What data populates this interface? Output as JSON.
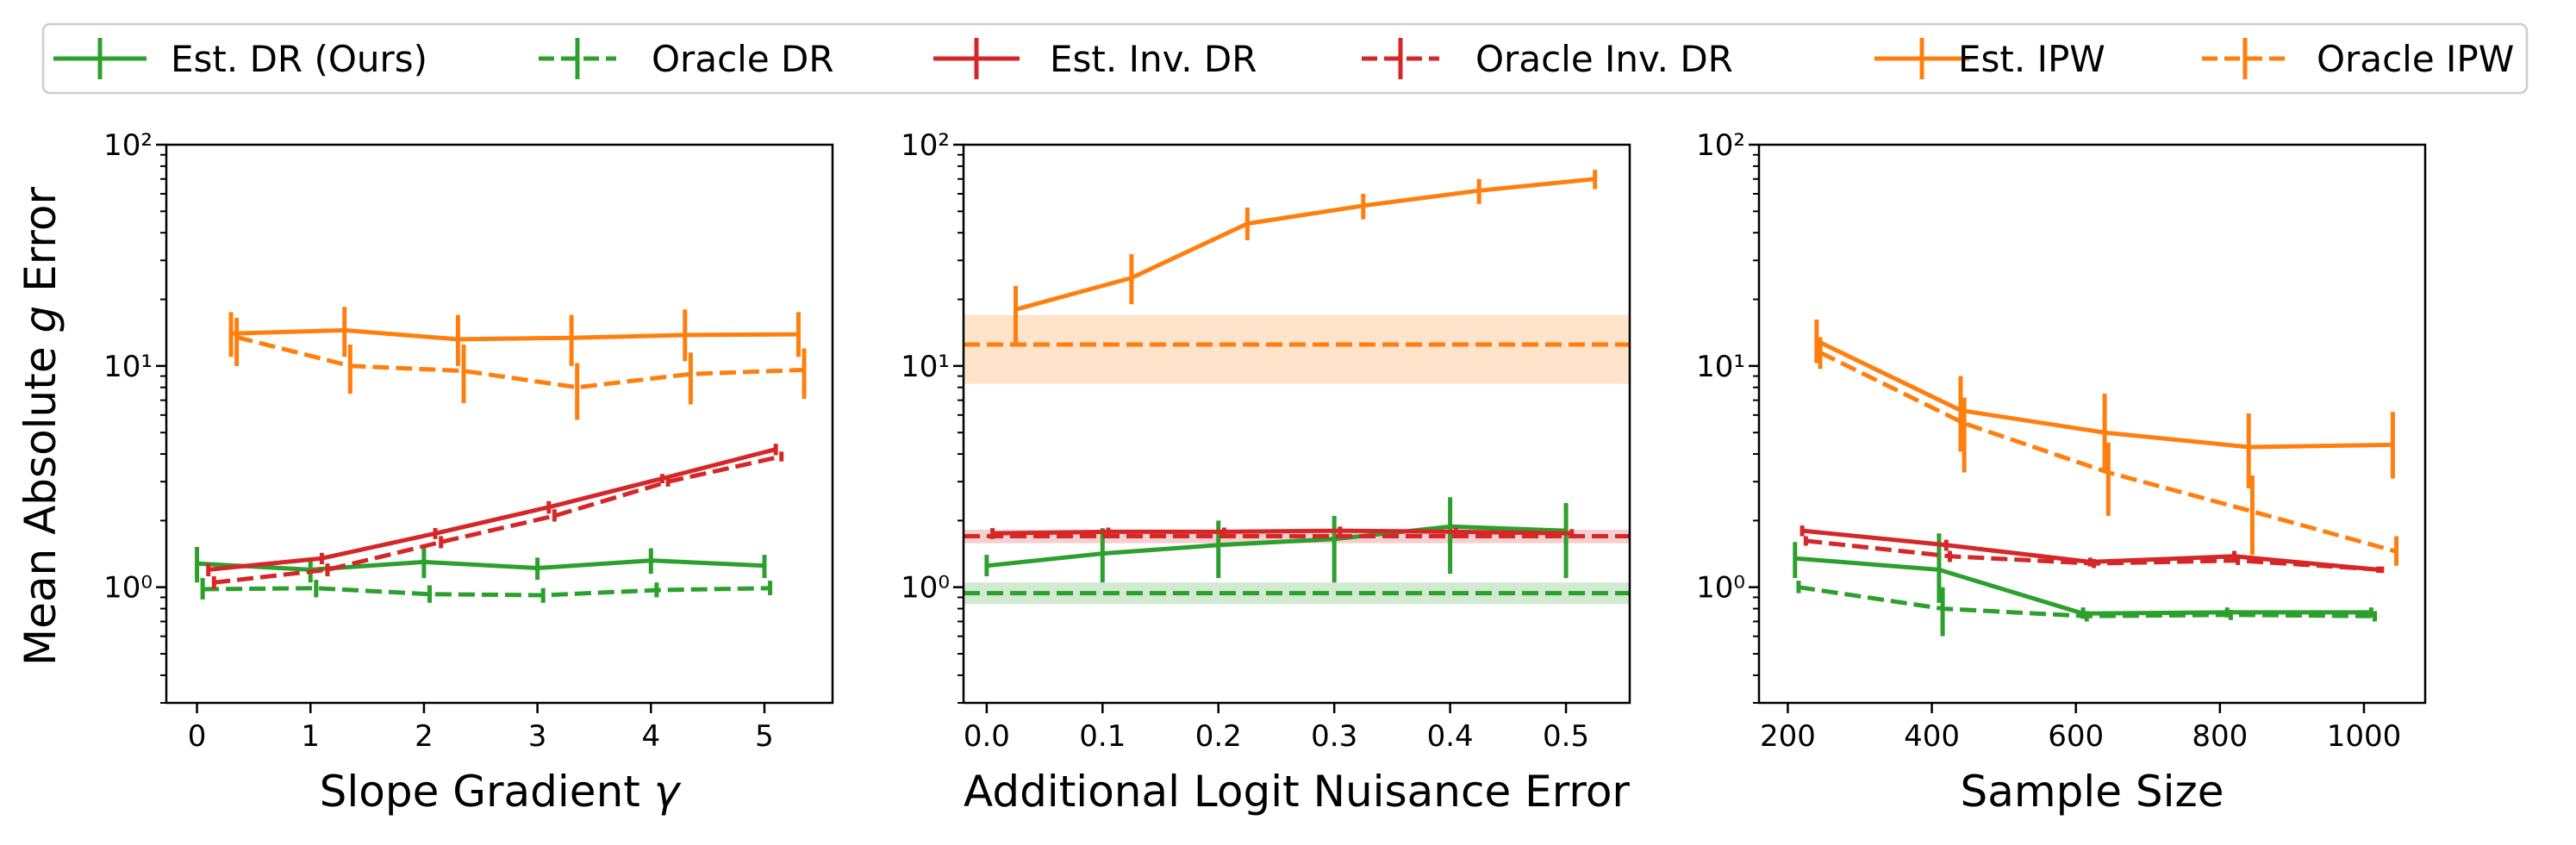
{
  "legend": {
    "entries": [
      {
        "key": "est_dr",
        "label": "Est. DR (Ours)",
        "color": "#2ca02c",
        "dash": "solid"
      },
      {
        "key": "oracle_dr",
        "label": "Oracle DR",
        "color": "#2ca02c",
        "dash": "dashed"
      },
      {
        "key": "est_inv_dr",
        "label": "Est. Inv. DR",
        "color": "#d62728",
        "dash": "solid"
      },
      {
        "key": "oracle_inv_dr",
        "label": "Oracle Inv. DR",
        "color": "#d62728",
        "dash": "dashed"
      },
      {
        "key": "est_ipw",
        "label": "Est. IPW",
        "color": "#ff7f0e",
        "dash": "solid"
      },
      {
        "key": "oracle_ipw",
        "label": "Oracle IPW",
        "color": "#ff7f0e",
        "dash": "dashed"
      }
    ]
  },
  "shared_ylabel": "Mean Absolute g Error",
  "chart_data": [
    {
      "type": "line",
      "title": "",
      "xlabel": "Slope Gradient γ",
      "ylabel": "Mean Absolute g Error",
      "xlim": [
        -0.27,
        5.6
      ],
      "ylim": [
        0.3,
        100
      ],
      "yscale": "log",
      "xticks": [
        0,
        1,
        2,
        3,
        4,
        5
      ],
      "xtick_labels": [
        "0",
        "1",
        "2",
        "3",
        "4",
        "5"
      ],
      "yticks": [
        1,
        10,
        100
      ],
      "ytick_labels": [
        "10⁰",
        "10¹",
        "10²"
      ],
      "series": [
        {
          "name": "Est. DR (Ours)",
          "color": "#2ca02c",
          "dash": "solid",
          "x": [
            0,
            1,
            2,
            3,
            4,
            5
          ],
          "y": [
            1.28,
            1.2,
            1.3,
            1.22,
            1.32,
            1.25
          ],
          "err_low": [
            1.05,
            1.05,
            1.1,
            1.08,
            1.15,
            1.1
          ],
          "err_high": [
            1.52,
            1.35,
            1.52,
            1.36,
            1.5,
            1.4
          ]
        },
        {
          "name": "Oracle DR",
          "color": "#2ca02c",
          "dash": "dashed",
          "x": [
            0.05,
            1.05,
            2.05,
            3.05,
            4.05,
            5.05
          ],
          "y": [
            0.98,
            0.99,
            0.93,
            0.92,
            0.97,
            0.99
          ],
          "err_low": [
            0.88,
            0.9,
            0.85,
            0.85,
            0.9,
            0.92
          ],
          "err_high": [
            1.1,
            1.08,
            1.02,
            0.99,
            1.05,
            1.07
          ]
        },
        {
          "name": "Est. Inv. DR",
          "color": "#d62728",
          "dash": "solid",
          "x": [
            0.1,
            1.1,
            2.1,
            3.1,
            4.1,
            5.1
          ],
          "y": [
            1.2,
            1.35,
            1.75,
            2.3,
            3.1,
            4.2
          ],
          "err_low": [
            1.12,
            1.27,
            1.65,
            2.15,
            2.95,
            3.95
          ],
          "err_high": [
            1.28,
            1.43,
            1.85,
            2.45,
            3.25,
            4.45
          ]
        },
        {
          "name": "Oracle Inv. DR",
          "color": "#d62728",
          "dash": "dashed",
          "x": [
            0.15,
            1.15,
            2.15,
            3.15,
            4.15,
            5.15
          ],
          "y": [
            1.05,
            1.2,
            1.6,
            2.1,
            3.0,
            3.9
          ],
          "err_low": [
            0.98,
            1.12,
            1.5,
            1.98,
            2.85,
            3.7
          ],
          "err_high": [
            1.12,
            1.28,
            1.7,
            2.25,
            3.15,
            4.1
          ]
        },
        {
          "name": "Est. IPW",
          "color": "#ff7f0e",
          "dash": "solid",
          "x": [
            0.3,
            1.3,
            2.3,
            3.3,
            4.3,
            5.3
          ],
          "y": [
            14,
            14.5,
            13.2,
            13.4,
            13.8,
            13.9
          ],
          "err_low": [
            11,
            11,
            10,
            10,
            10.5,
            11
          ],
          "err_high": [
            17.5,
            18.5,
            17,
            17,
            18,
            17.5
          ]
        },
        {
          "name": "Oracle IPW",
          "color": "#ff7f0e",
          "dash": "dashed",
          "x": [
            0.35,
            1.35,
            2.35,
            3.35,
            4.35,
            5.35
          ],
          "y": [
            13.5,
            10,
            9.5,
            8,
            9.2,
            9.6
          ],
          "err_low": [
            10,
            7.5,
            6.8,
            5.7,
            6.7,
            7.1
          ],
          "err_high": [
            16.5,
            12.5,
            12.5,
            10.3,
            11.5,
            12
          ]
        }
      ]
    },
    {
      "type": "line",
      "title": "",
      "xlabel": "Additional Logit Nuisance Error",
      "ylabel": "",
      "xlim": [
        -0.02,
        0.555
      ],
      "ylim": [
        0.3,
        100
      ],
      "yscale": "log",
      "xticks": [
        0,
        0.1,
        0.2,
        0.3,
        0.4,
        0.5
      ],
      "xtick_labels": [
        "0.0",
        "0.1",
        "0.2",
        "0.3",
        "0.4",
        "0.5"
      ],
      "yticks": [
        1,
        10,
        100
      ],
      "ytick_labels": [
        "10⁰",
        "10¹",
        "10²"
      ],
      "bands": [
        {
          "name": "Oracle DR",
          "color": "#2ca02c",
          "y": 0.94,
          "low": 0.84,
          "high": 1.05
        },
        {
          "name": "Oracle Inv. DR",
          "color": "#d62728",
          "y": 1.7,
          "low": 1.58,
          "high": 1.82
        },
        {
          "name": "Oracle IPW",
          "color": "#ff7f0e",
          "y": 12.5,
          "low": 8.3,
          "high": 17
        }
      ],
      "series": [
        {
          "name": "Est. DR (Ours)",
          "color": "#2ca02c",
          "dash": "solid",
          "x": [
            0,
            0.1,
            0.2,
            0.3,
            0.4,
            0.5
          ],
          "y": [
            1.25,
            1.42,
            1.55,
            1.65,
            1.88,
            1.8
          ],
          "err_low": [
            1.12,
            1.05,
            1.1,
            1.05,
            1.15,
            1.1
          ],
          "err_high": [
            1.4,
            1.85,
            2.0,
            2.1,
            2.55,
            2.4
          ]
        },
        {
          "name": "Oracle DR",
          "color": "#2ca02c",
          "dash": "dashed",
          "x": [
            -0.02,
            0.555
          ],
          "y": [
            0.94,
            0.94
          ]
        },
        {
          "name": "Est. Inv. DR",
          "color": "#d62728",
          "dash": "solid",
          "x": [
            0.005,
            0.105,
            0.205,
            0.305,
            0.405,
            0.505
          ],
          "y": [
            1.75,
            1.78,
            1.78,
            1.8,
            1.78,
            1.75
          ],
          "err_low": [
            1.65,
            1.7,
            1.7,
            1.72,
            1.7,
            1.67
          ],
          "err_high": [
            1.85,
            1.86,
            1.86,
            1.88,
            1.86,
            1.83
          ]
        },
        {
          "name": "Oracle Inv. DR",
          "color": "#d62728",
          "dash": "dashed",
          "x": [
            -0.02,
            0.555
          ],
          "y": [
            1.7,
            1.7
          ]
        },
        {
          "name": "Est. IPW",
          "color": "#ff7f0e",
          "dash": "solid",
          "x": [
            0.025,
            0.125,
            0.225,
            0.325,
            0.425,
            0.525
          ],
          "y": [
            18,
            25,
            44,
            53,
            62,
            70
          ],
          "err_low": [
            12.5,
            19,
            37,
            46,
            54,
            63
          ],
          "err_high": [
            23,
            32,
            52,
            60,
            70,
            77
          ]
        },
        {
          "name": "Oracle IPW",
          "color": "#ff7f0e",
          "dash": "dashed",
          "x": [
            -0.02,
            0.555
          ],
          "y": [
            12.5,
            12.5
          ]
        }
      ]
    },
    {
      "type": "line",
      "title": "",
      "xlabel": "Sample Size",
      "ylabel": "",
      "xlim": [
        160,
        1085
      ],
      "ylim": [
        0.3,
        100
      ],
      "yscale": "log",
      "xticks": [
        200,
        400,
        600,
        800,
        1000
      ],
      "xtick_labels": [
        "200",
        "400",
        "600",
        "800",
        "1000"
      ],
      "yticks": [
        1,
        10,
        100
      ],
      "ytick_labels": [
        "10⁰",
        "10¹",
        "10²"
      ],
      "series": [
        {
          "name": "Est. DR (Ours)",
          "color": "#2ca02c",
          "dash": "solid",
          "x": [
            210,
            410,
            610,
            810,
            1010
          ],
          "y": [
            1.35,
            1.2,
            0.76,
            0.77,
            0.77
          ],
          "err_low": [
            1.1,
            0.85,
            0.72,
            0.73,
            0.73
          ],
          "err_high": [
            1.6,
            1.75,
            0.81,
            0.81,
            0.81
          ]
        },
        {
          "name": "Oracle DR",
          "color": "#2ca02c",
          "dash": "dashed",
          "x": [
            215,
            415,
            615,
            815,
            1015
          ],
          "y": [
            1.0,
            0.8,
            0.74,
            0.75,
            0.74
          ],
          "err_low": [
            0.94,
            0.6,
            0.7,
            0.71,
            0.7
          ],
          "err_high": [
            1.07,
            1.0,
            0.78,
            0.79,
            0.78
          ]
        },
        {
          "name": "Est. Inv. DR",
          "color": "#d62728",
          "dash": "solid",
          "x": [
            220,
            420,
            620,
            820,
            1020
          ],
          "y": [
            1.8,
            1.55,
            1.3,
            1.38,
            1.2
          ],
          "err_low": [
            1.7,
            1.46,
            1.24,
            1.3,
            1.16
          ],
          "err_high": [
            1.9,
            1.64,
            1.36,
            1.46,
            1.24
          ]
        },
        {
          "name": "Oracle Inv. DR",
          "color": "#d62728",
          "dash": "dashed",
          "x": [
            225,
            425,
            625,
            825,
            1025
          ],
          "y": [
            1.62,
            1.38,
            1.28,
            1.32,
            1.2
          ],
          "err_low": [
            1.54,
            1.3,
            1.22,
            1.26,
            1.16
          ],
          "err_high": [
            1.7,
            1.46,
            1.34,
            1.38,
            1.24
          ]
        },
        {
          "name": "Est. IPW",
          "color": "#ff7f0e",
          "dash": "solid",
          "x": [
            240,
            440,
            640,
            840,
            1040
          ],
          "y": [
            13,
            6.3,
            5,
            4.3,
            4.4
          ],
          "err_low": [
            10.3,
            4.1,
            3.3,
            2.8,
            3.1
          ],
          "err_high": [
            16.2,
            9,
            7.5,
            6.1,
            6.2
          ]
        },
        {
          "name": "Oracle IPW",
          "color": "#ff7f0e",
          "dash": "dashed",
          "x": [
            245,
            445,
            645,
            845,
            1045
          ],
          "y": [
            11.5,
            5.5,
            3.3,
            2.2,
            1.45
          ],
          "err_low": [
            9.7,
            3.3,
            2.1,
            1.4,
            1.25
          ],
          "err_high": [
            13.5,
            7.2,
            4.5,
            3.2,
            1.7
          ]
        }
      ]
    }
  ]
}
